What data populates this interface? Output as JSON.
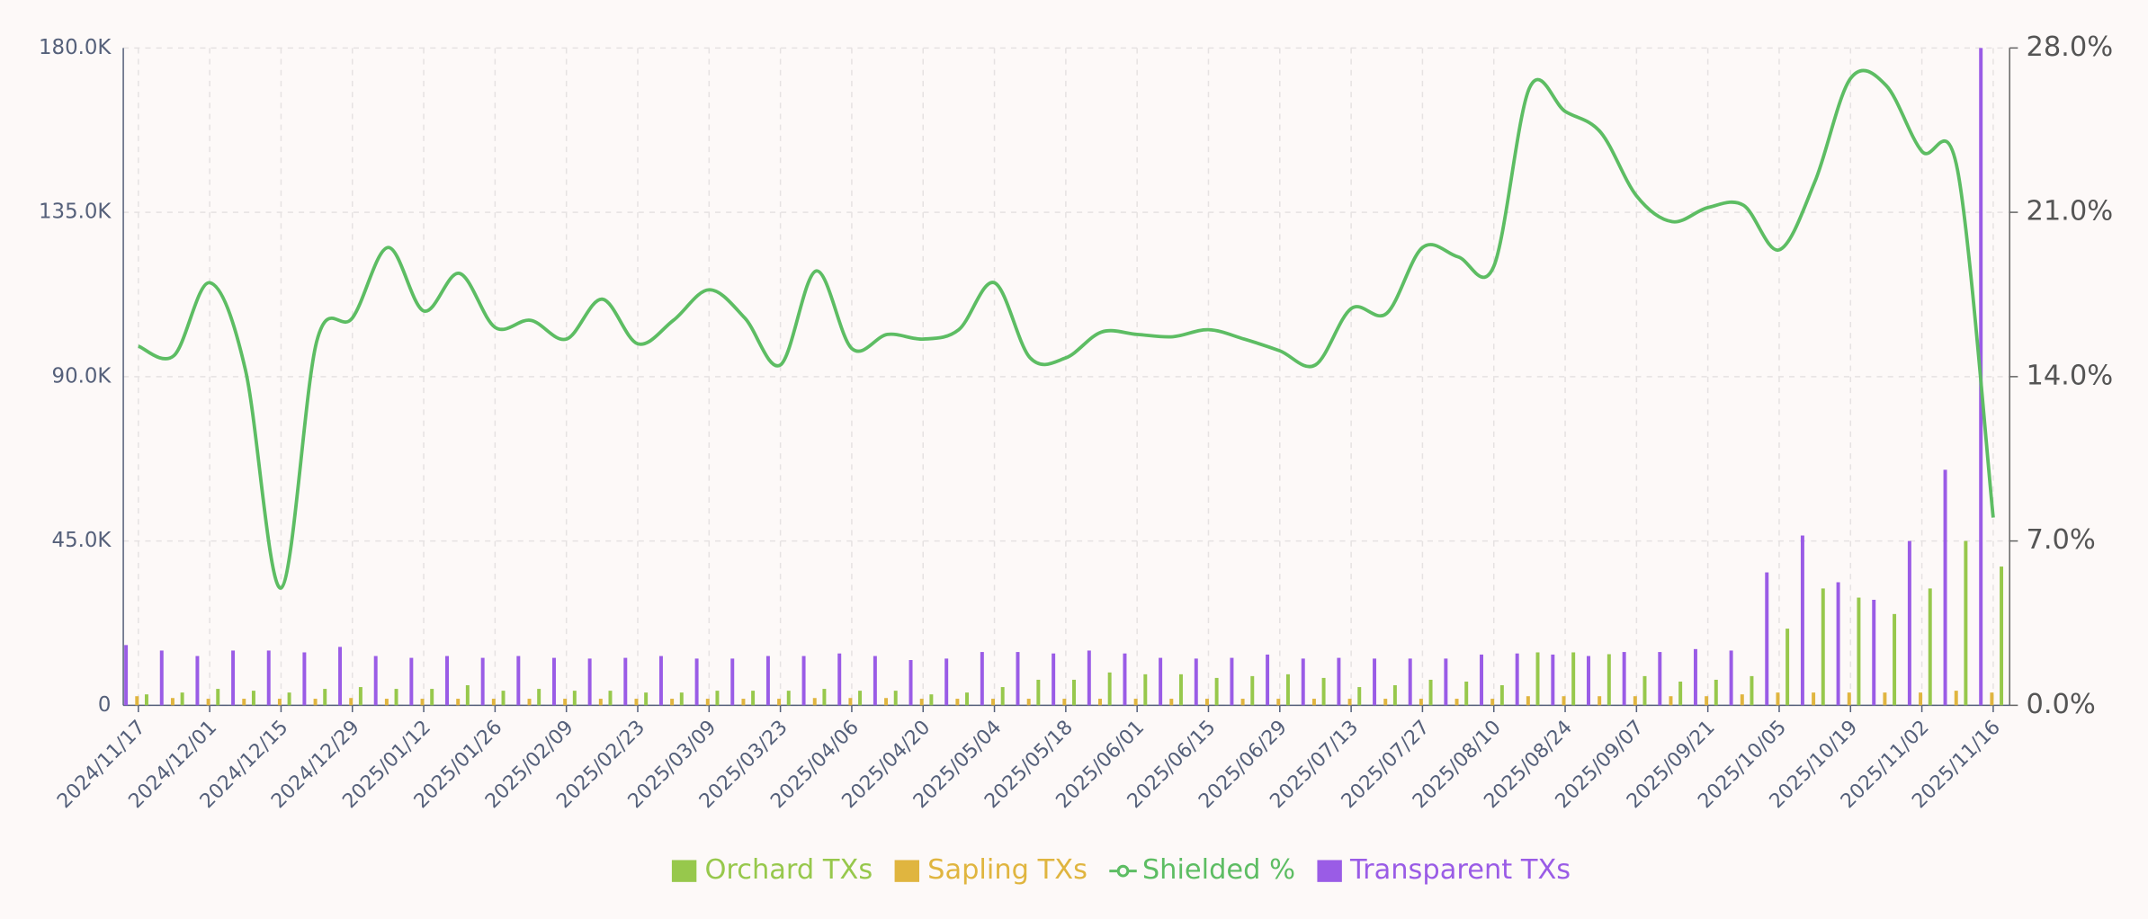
{
  "chart_data": {
    "type": "bar",
    "categories": [
      "2024/11/17",
      null,
      "2024/12/01",
      null,
      "2024/12/15",
      null,
      "2024/12/29",
      null,
      "2025/01/12",
      null,
      "2025/01/26",
      null,
      "2025/02/09",
      null,
      "2025/02/23",
      null,
      "2025/03/09",
      null,
      "2025/03/23",
      null,
      "2025/04/06",
      null,
      "2025/04/20",
      null,
      "2025/05/04",
      null,
      "2025/05/18",
      null,
      "2025/06/01",
      null,
      "2025/06/15",
      null,
      "2025/06/29",
      null,
      "2025/07/13",
      null,
      "2025/07/27",
      null,
      "2025/08/10",
      null,
      "2025/08/24",
      null,
      "2025/09/07",
      null,
      "2025/09/21",
      null,
      "2025/10/05",
      null,
      "2025/10/19",
      null,
      "2025/11/02",
      null,
      "2025/11/16"
    ],
    "series": [
      {
        "name": "Orchard TXs",
        "color": "#97c84c",
        "type": "bar",
        "values": [
          3000,
          3500,
          4500,
          4000,
          3500,
          4500,
          5000,
          4500,
          4500,
          5500,
          4000,
          4500,
          4000,
          4000,
          3500,
          3500,
          4000,
          4000,
          4000,
          4500,
          4000,
          4000,
          3000,
          3500,
          5000,
          7000,
          7000,
          9000,
          8500,
          8500,
          7500,
          8000,
          8500,
          7500,
          5000,
          5500,
          7000,
          6500,
          5500,
          14500,
          14500,
          14000,
          8000,
          6500,
          7000,
          8000,
          21000,
          32000,
          29500,
          25000,
          32000,
          45000,
          38000
        ]
      },
      {
        "name": "Sapling TXs",
        "color": "#e0b53f",
        "type": "bar",
        "values": [
          2500,
          2000,
          1800,
          1800,
          1800,
          1800,
          2000,
          1800,
          1800,
          1800,
          1800,
          1800,
          1800,
          1800,
          1800,
          1800,
          1800,
          1800,
          1800,
          2000,
          2000,
          2000,
          1800,
          1800,
          1800,
          1800,
          1800,
          1800,
          1800,
          1800,
          1800,
          1800,
          1800,
          1800,
          1800,
          1800,
          1800,
          1800,
          1800,
          2500,
          2500,
          2500,
          2500,
          2500,
          2500,
          3000,
          3500,
          3500,
          3500,
          3500,
          3500,
          4000,
          3500
        ]
      },
      {
        "name": "Shielded %",
        "color": "#5dbd63",
        "type": "line",
        "axis": "y2",
        "values": [
          15.3,
          14.9,
          18.0,
          14.3,
          5.0,
          15.5,
          16.5,
          19.5,
          16.8,
          18.4,
          16.1,
          16.4,
          15.6,
          17.3,
          15.4,
          16.4,
          17.7,
          16.5,
          14.5,
          18.5,
          15.2,
          15.8,
          15.6,
          16.0,
          18.0,
          14.8,
          14.8,
          15.9,
          15.8,
          15.7,
          16.0,
          15.6,
          15.1,
          14.5,
          16.9,
          16.7,
          19.5,
          19.1,
          18.7,
          26.3,
          25.3,
          24.4,
          21.7,
          20.6,
          21.2,
          21.3,
          19.4,
          22.3,
          26.7,
          26.4,
          23.6,
          22.8,
          8.0
        ]
      },
      {
        "name": "Transparent TXs",
        "color": "#9a5ce6",
        "type": "bar",
        "values": [
          16500,
          15000,
          13500,
          15000,
          15000,
          14500,
          16000,
          13500,
          13000,
          13500,
          13000,
          13500,
          13000,
          12800,
          13000,
          13500,
          12800,
          12800,
          13500,
          13500,
          14200,
          13500,
          12400,
          12800,
          14600,
          14600,
          14200,
          15000,
          14200,
          13000,
          12800,
          13000,
          13900,
          12800,
          13000,
          12800,
          12800,
          12800,
          13900,
          14200,
          13900,
          13500,
          14600,
          14600,
          15400,
          15000,
          36400,
          46500,
          33700,
          28900,
          45000,
          64500,
          180000
        ]
      }
    ],
    "ylim": [
      0,
      180000
    ],
    "yticks": [
      0,
      {
        "value": 45000,
        "label": "45.0K"
      },
      {
        "value": 90000,
        "label": "90.0K"
      },
      {
        "value": 135000,
        "label": "135.0K"
      },
      {
        "value": 180000,
        "label": "180.0K"
      }
    ],
    "y2lim": [
      0,
      28
    ],
    "y2ticks": [
      {
        "value": 0,
        "label": "0.0%"
      },
      {
        "value": 7,
        "label": "7.0%"
      },
      {
        "value": 14,
        "label": "14.0%"
      },
      {
        "value": 21,
        "label": "21.0%"
      },
      {
        "value": 28,
        "label": "28.0%"
      }
    ],
    "grid": true,
    "legend": "bottom"
  }
}
